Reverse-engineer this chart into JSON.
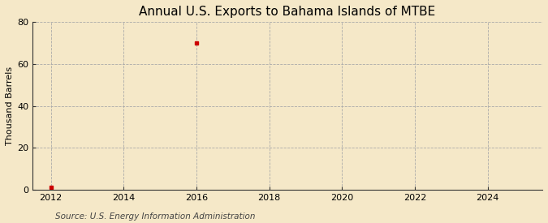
{
  "title": "Annual U.S. Exports to Bahama Islands of MTBE",
  "ylabel": "Thousand Barrels",
  "source": "Source: U.S. Energy Information Administration",
  "background_color": "#f5e8c8",
  "plot_background_color": "#f5e8c8",
  "data_years": [
    2012,
    2016
  ],
  "data_values": [
    1,
    70
  ],
  "marker_color": "#cc0000",
  "marker_style": "s",
  "marker_size": 3,
  "xmin": 2011.5,
  "xmax": 2025.5,
  "ymin": 0,
  "ymax": 80,
  "yticks": [
    0,
    20,
    40,
    60,
    80
  ],
  "xticks": [
    2012,
    2014,
    2016,
    2018,
    2020,
    2022,
    2024
  ],
  "grid_color": "#aaaaaa",
  "grid_style": "--",
  "grid_linewidth": 0.6,
  "title_fontsize": 11,
  "axis_label_fontsize": 8,
  "tick_fontsize": 8,
  "source_fontsize": 7.5
}
